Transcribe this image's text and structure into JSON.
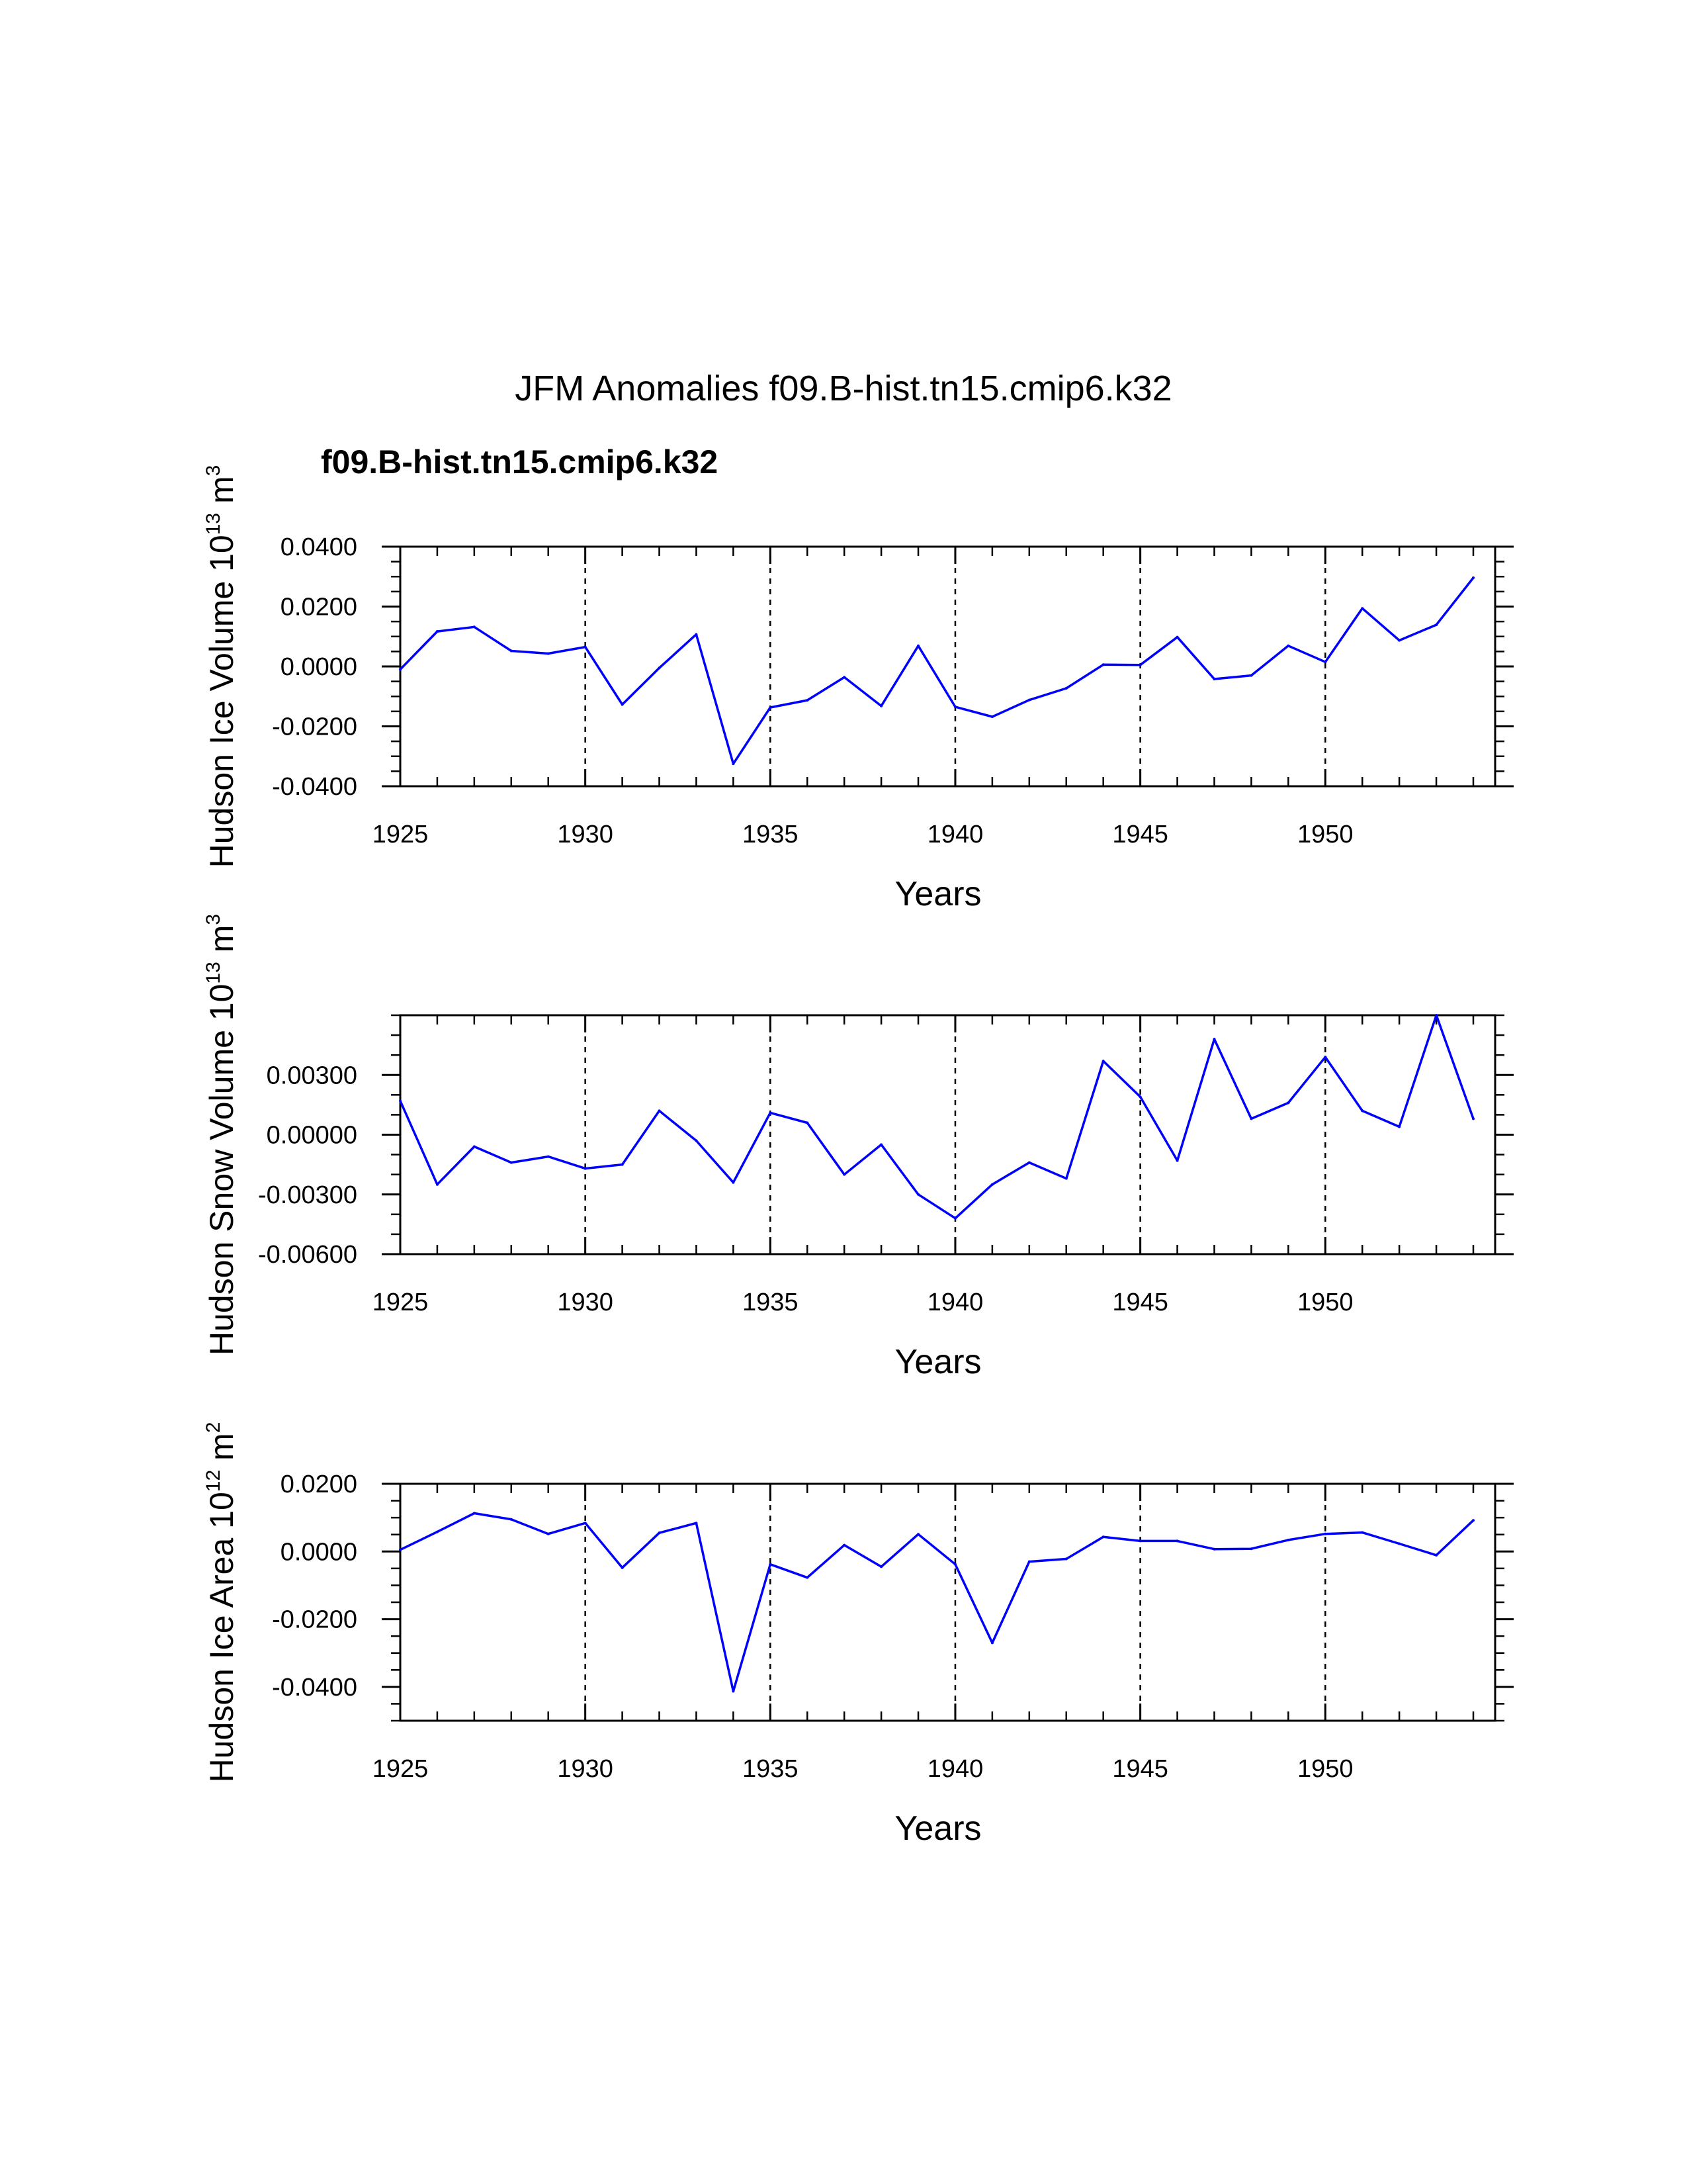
{
  "figure": {
    "title": "JFM Anomalies f09.B-hist.tn15.cmip6.k32",
    "legend_label": "f09.B-hist.tn15.cmip6.k32",
    "legend_color": "#0000ff"
  },
  "chart_data": [
    {
      "type": "line",
      "title": "JFM Anomalies f09.B-hist.tn15.cmip6.k32",
      "xlabel": "Years",
      "ylabel": "Hudson Ice Volume 10",
      "ylabel_exp": "13",
      "ylabel_unit": " m",
      "ylabel_unit_exp": "3",
      "xlim": [
        1925,
        1954
      ],
      "ylim": [
        -0.04,
        0.04
      ],
      "xticks": [
        1925,
        1930,
        1935,
        1940,
        1945,
        1950
      ],
      "xtick_labels": [
        "1925",
        "1930",
        "1935",
        "1940",
        "1945",
        "1950"
      ],
      "yticks": [
        -0.04,
        -0.02,
        0,
        0.02,
        0.04
      ],
      "ytick_labels": [
        "-0.0400",
        "-0.0200",
        "0.0000",
        "0.0200",
        "0.0400"
      ],
      "y_minor_step": 0.005,
      "grid": "dashed vertical at major x ticks",
      "color": "#0000ff",
      "series": [
        {
          "name": "f09.B-hist.tn15.cmip6.k32",
          "x": [
            1925,
            1926,
            1927,
            1928,
            1929,
            1930,
            1931,
            1932,
            1933,
            1934,
            1935,
            1936,
            1937,
            1938,
            1939,
            1940,
            1941,
            1942,
            1943,
            1944,
            1945,
            1946,
            1947,
            1948,
            1949,
            1950,
            1951,
            1952,
            1953,
            1954
          ],
          "values": [
            -0.001,
            0.0117,
            0.0132,
            0.0052,
            0.0043,
            0.0065,
            -0.0127,
            -0.0005,
            0.0107,
            -0.0325,
            -0.0137,
            -0.0113,
            -0.0036,
            -0.0132,
            0.0069,
            -0.0135,
            -0.0168,
            -0.0112,
            -0.0073,
            0.0006,
            0.0005,
            0.0098,
            -0.0042,
            -0.003,
            0.0069,
            0.0015,
            0.0194,
            0.0087,
            0.0139,
            0.0296
          ]
        }
      ]
    },
    {
      "type": "line",
      "title": "",
      "xlabel": "Years",
      "ylabel": "Hudson Snow Volume 10",
      "ylabel_exp": "13",
      "ylabel_unit": " m",
      "ylabel_unit_exp": "3",
      "xlim": [
        1925,
        1954
      ],
      "ylim": [
        -0.006,
        0.006
      ],
      "xticks": [
        1925,
        1930,
        1935,
        1940,
        1945,
        1950
      ],
      "xtick_labels": [
        "1925",
        "1930",
        "1935",
        "1940",
        "1945",
        "1950"
      ],
      "yticks": [
        -0.006,
        -0.003,
        0,
        0.003
      ],
      "ytick_labels": [
        "-0.00600",
        "-0.00300",
        "0.00000",
        "0.00300"
      ],
      "y_minor_step": 0.001,
      "grid": "dashed vertical at major x ticks",
      "color": "#0000ff",
      "series": [
        {
          "name": "f09.B-hist.tn15.cmip6.k32",
          "x": [
            1925,
            1926,
            1927,
            1928,
            1929,
            1930,
            1931,
            1932,
            1933,
            1934,
            1935,
            1936,
            1937,
            1938,
            1939,
            1940,
            1941,
            1942,
            1943,
            1944,
            1945,
            1946,
            1947,
            1948,
            1949,
            1950,
            1951,
            1952,
            1953,
            1954
          ],
          "values": [
            0.0017,
            -0.0025,
            -0.0006,
            -0.0014,
            -0.0011,
            -0.0017,
            -0.0015,
            0.0012,
            -0.0003,
            -0.0024,
            0.0011,
            0.0006,
            -0.002,
            -0.0005,
            -0.003,
            -0.0042,
            -0.0025,
            -0.0014,
            -0.0022,
            0.0037,
            0.0019,
            -0.0013,
            0.0048,
            0.0008,
            0.0016,
            0.0039,
            0.0012,
            0.0004,
            0.006,
            0.0008
          ]
        }
      ]
    },
    {
      "type": "line",
      "title": "",
      "xlabel": "Years",
      "ylabel": "Hudson Ice Area 10",
      "ylabel_exp": "12",
      "ylabel_unit": " m",
      "ylabel_unit_exp": "2",
      "xlim": [
        1925,
        1954
      ],
      "ylim": [
        -0.05,
        0.02
      ],
      "xticks": [
        1925,
        1930,
        1935,
        1940,
        1945,
        1950
      ],
      "xtick_labels": [
        "1925",
        "1930",
        "1935",
        "1940",
        "1945",
        "1950"
      ],
      "yticks": [
        -0.04,
        -0.02,
        0,
        0.02
      ],
      "ytick_labels": [
        "-0.0400",
        "-0.0200",
        "0.0000",
        "0.0200"
      ],
      "y_minor_step": 0.005,
      "grid": "dashed vertical at major x ticks",
      "color": "#0000ff",
      "series": [
        {
          "name": "f09.B-hist.tn15.cmip6.k32",
          "x": [
            1925,
            1926,
            1927,
            1928,
            1929,
            1930,
            1931,
            1932,
            1933,
            1934,
            1935,
            1936,
            1937,
            1938,
            1939,
            1940,
            1941,
            1942,
            1943,
            1944,
            1945,
            1946,
            1947,
            1948,
            1949,
            1950,
            1951,
            1952,
            1953,
            1954
          ],
          "values": [
            0.0005,
            0.0058,
            0.0113,
            0.0095,
            0.0052,
            0.0084,
            -0.0048,
            0.0055,
            0.0084,
            -0.0413,
            -0.0038,
            -0.0077,
            0.0019,
            -0.0045,
            0.0051,
            -0.0038,
            -0.027,
            -0.003,
            -0.0022,
            0.0043,
            0.0031,
            0.0031,
            0.0007,
            0.0008,
            0.0034,
            0.0052,
            0.0056,
            0.0023,
            -0.0011,
            0.0092
          ]
        }
      ]
    }
  ]
}
